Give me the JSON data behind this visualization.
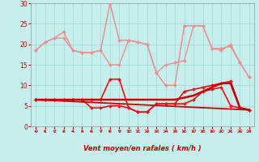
{
  "xlabel": "Vent moyen/en rafales ( km/h )",
  "xlim": [
    -0.5,
    23.5
  ],
  "ylim": [
    0,
    30
  ],
  "yticks": [
    0,
    5,
    10,
    15,
    20,
    25,
    30
  ],
  "xticks": [
    0,
    1,
    2,
    3,
    4,
    5,
    6,
    7,
    8,
    9,
    10,
    11,
    12,
    13,
    14,
    15,
    16,
    17,
    18,
    19,
    20,
    21,
    22,
    23
  ],
  "bg_color": "#c5eeed",
  "grid_color": "#a0d8d8",
  "series": [
    {
      "x": [
        0,
        1,
        2,
        3,
        4,
        5,
        6,
        7,
        8,
        9,
        10,
        11,
        12,
        13,
        14,
        15,
        16,
        17,
        18,
        19,
        20,
        21,
        22,
        23
      ],
      "y": [
        18.5,
        20.5,
        21.5,
        23,
        18.5,
        18,
        18,
        18.5,
        30,
        21,
        21,
        20.5,
        20,
        13,
        10,
        10,
        24.5,
        24.5,
        24.5,
        19,
        19,
        19.5,
        15.5,
        12
      ],
      "color": "#f08888",
      "lw": 1.0,
      "marker": "D",
      "ms": 2.0
    },
    {
      "x": [
        0,
        1,
        2,
        3,
        4,
        5,
        6,
        7,
        8,
        9,
        10,
        11,
        12,
        13,
        14,
        15,
        16,
        17,
        18,
        19,
        20,
        21,
        22,
        23
      ],
      "y": [
        18.5,
        20.5,
        21.5,
        21.5,
        18.5,
        18,
        18,
        18.5,
        15,
        15,
        21,
        20.5,
        20,
        13,
        15,
        15.5,
        16,
        24.5,
        24.5,
        19,
        18.5,
        20,
        15.5,
        12
      ],
      "color": "#f09090",
      "lw": 1.0,
      "marker": "D",
      "ms": 2.0
    },
    {
      "x": [
        0,
        1,
        2,
        3,
        4,
        5,
        6,
        7,
        8,
        9,
        10,
        11,
        12,
        13,
        14,
        15,
        16,
        17,
        18,
        19,
        20,
        21,
        22,
        23
      ],
      "y": [
        6.5,
        6.5,
        6.5,
        6.5,
        6.5,
        6.5,
        6.5,
        6.5,
        11.5,
        11.5,
        4.5,
        3.5,
        3.5,
        5.5,
        5.5,
        5.5,
        8.5,
        9,
        9.5,
        10,
        10.5,
        11,
        4.5,
        4.0
      ],
      "color": "#ee1111",
      "lw": 1.2,
      "marker": "D",
      "ms": 2.0
    },
    {
      "x": [
        0,
        1,
        2,
        3,
        4,
        5,
        6,
        7,
        8,
        9,
        10,
        11,
        12,
        13,
        14,
        15,
        16,
        17,
        18,
        19,
        20,
        21,
        22,
        23
      ],
      "y": [
        6.5,
        6.5,
        6.5,
        6.5,
        6.5,
        6.5,
        4.5,
        4.5,
        5,
        5,
        4.5,
        3.5,
        3.5,
        5.5,
        5.5,
        5.5,
        5.5,
        6.5,
        8.5,
        9,
        9.5,
        5,
        4.5,
        4.0
      ],
      "color": "#ee1111",
      "lw": 1.2,
      "marker": "D",
      "ms": 2.0
    },
    {
      "x": [
        0,
        1,
        2,
        3,
        4,
        5,
        6,
        7,
        8,
        9,
        10,
        11,
        12,
        13,
        14,
        15,
        16,
        17,
        18,
        19,
        20,
        21,
        22,
        23
      ],
      "y": [
        6.5,
        6.5,
        6.5,
        6.5,
        6.5,
        6.5,
        6.5,
        6.5,
        6.5,
        6.5,
        6.5,
        6.5,
        6.5,
        6.5,
        6.5,
        6.5,
        7.0,
        7.5,
        8.5,
        9.5,
        10.5,
        10.5,
        4.5,
        4.0
      ],
      "color": "#cc0000",
      "lw": 1.8,
      "marker": null,
      "ms": 0
    },
    {
      "x": [
        0,
        23
      ],
      "y": [
        6.5,
        4.0
      ],
      "color": "#cc0000",
      "lw": 1.3,
      "marker": null,
      "ms": 0
    }
  ],
  "arrow_color": "#cc0000",
  "wind_dirs": [
    225,
    270,
    315,
    225,
    225,
    225,
    225,
    315,
    270,
    315,
    315,
    315,
    225,
    225,
    225,
    225,
    270,
    270,
    270,
    270,
    270,
    270,
    225,
    225
  ]
}
